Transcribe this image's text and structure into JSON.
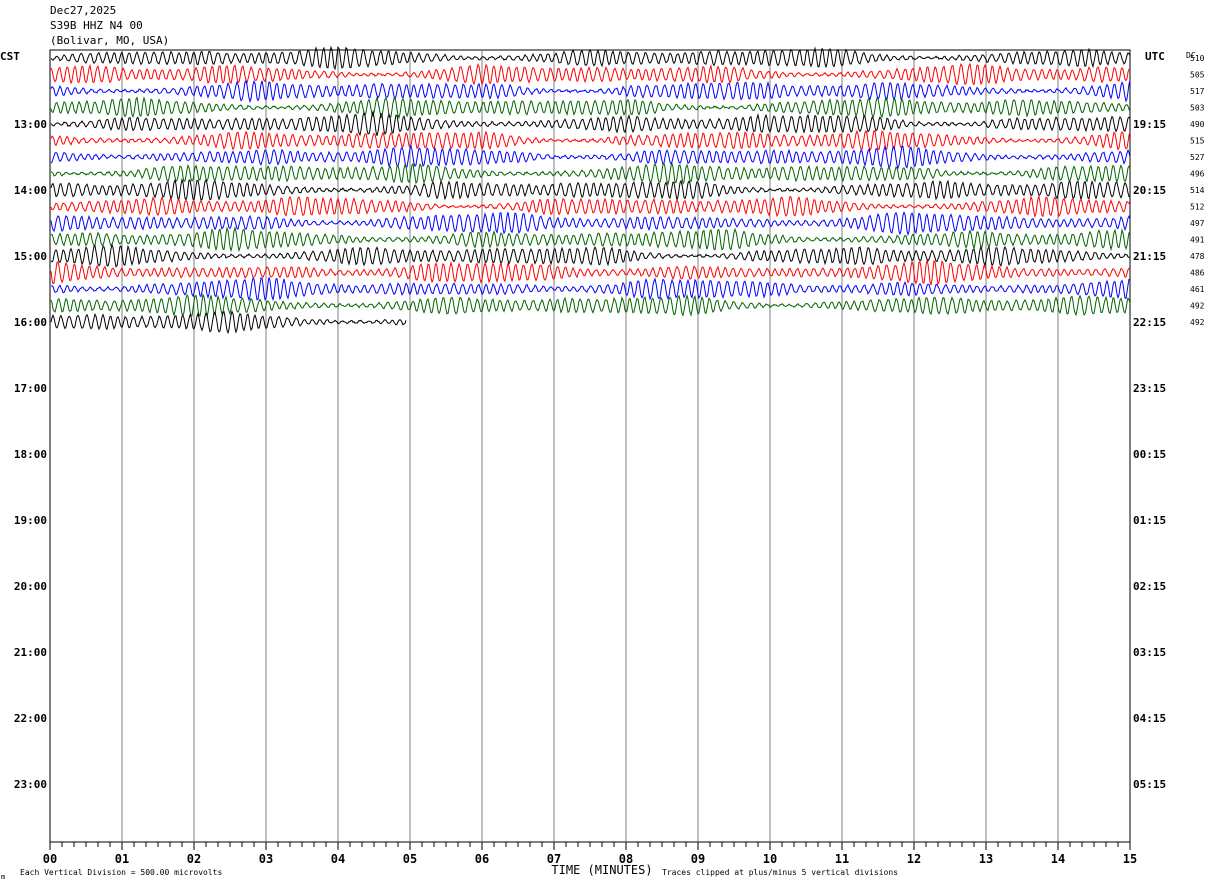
{
  "header": {
    "date": "Dec27,2025",
    "station": "S39B HHZ N4 00",
    "location": "(Bolivar, MO, USA)"
  },
  "footer": {
    "scale_note": "Each Vertical Division =  500.00 microvolts",
    "clip_note": "Traces clipped at plus/minus 5 vertical divisions",
    "mark": "m"
  },
  "chart_data": {
    "type": "line",
    "title": "",
    "xlabel": "TIME (MINUTES)",
    "ylabel_left": "CST",
    "ylabel_right": "UTC",
    "dc_label": "DC",
    "xlim": [
      0,
      15
    ],
    "x_ticks": [
      "00",
      "01",
      "02",
      "03",
      "04",
      "05",
      "06",
      "07",
      "08",
      "09",
      "10",
      "11",
      "12",
      "13",
      "14",
      "15"
    ],
    "left_hour_labels": [
      "13:00",
      "14:00",
      "15:00",
      "16:00",
      "17:00",
      "18:00",
      "19:00",
      "20:00",
      "21:00",
      "22:00",
      "23:00"
    ],
    "right_hour_labels": [
      "19:15",
      "20:15",
      "21:15",
      "22:15",
      "23:15",
      "00:15",
      "01:15",
      "02:15",
      "03:15",
      "04:15",
      "05:15"
    ],
    "trace_colors": [
      "#000000",
      "#ff0000",
      "#0000ff",
      "#006400"
    ],
    "traces": [
      {
        "dc": "510",
        "color": "black",
        "end_minute": 15
      },
      {
        "dc": "505",
        "color": "red",
        "end_minute": 15
      },
      {
        "dc": "517",
        "color": "blue",
        "end_minute": 15
      },
      {
        "dc": "503",
        "color": "green",
        "end_minute": 15
      },
      {
        "dc": "490",
        "color": "black",
        "end_minute": 15
      },
      {
        "dc": "515",
        "color": "red",
        "end_minute": 15
      },
      {
        "dc": "527",
        "color": "blue",
        "end_minute": 15
      },
      {
        "dc": "496",
        "color": "green",
        "end_minute": 15
      },
      {
        "dc": "514",
        "color": "black",
        "end_minute": 15
      },
      {
        "dc": "512",
        "color": "red",
        "end_minute": 15
      },
      {
        "dc": "497",
        "color": "blue",
        "end_minute": 15
      },
      {
        "dc": "491",
        "color": "green",
        "end_minute": 15
      },
      {
        "dc": "478",
        "color": "black",
        "end_minute": 15
      },
      {
        "dc": "486",
        "color": "red",
        "end_minute": 15
      },
      {
        "dc": "461",
        "color": "blue",
        "end_minute": 15
      },
      {
        "dc": "492",
        "color": "green",
        "end_minute": 15
      },
      {
        "dc": "492",
        "color": "black",
        "end_minute": 4.95
      }
    ],
    "grid": true
  }
}
